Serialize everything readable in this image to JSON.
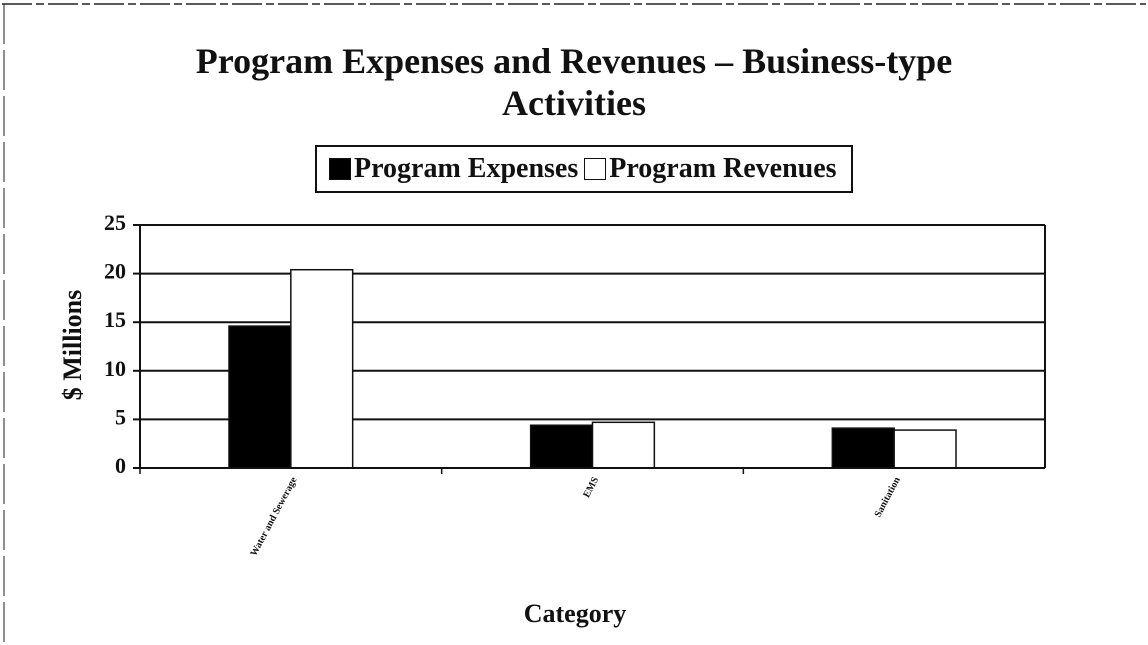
{
  "chart_data": {
    "type": "bar",
    "title": "Program Expenses and Revenues – Business-type Activities",
    "y_label": "$ Millions",
    "x_label": "Category",
    "categories": [
      "Water and Sewerage",
      "EMS",
      "Sanitation"
    ],
    "series": [
      {
        "name": "Program Expenses",
        "color": "#000000",
        "values": [
          14.6,
          4.4,
          4.1
        ]
      },
      {
        "name": "Program Revenues",
        "color": "#ffffff",
        "values": [
          20.4,
          4.7,
          3.9
        ]
      }
    ],
    "ylim": [
      0,
      25
    ],
    "yticks": [
      0,
      5,
      10,
      15,
      20,
      25
    ],
    "grid": true
  }
}
